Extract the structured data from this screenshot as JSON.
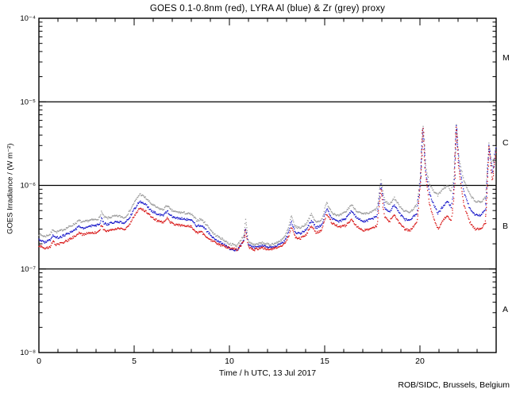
{
  "chart_data": {
    "type": "scatter",
    "title": "GOES 0.1-0.8nm (red), LYRA Al (blue) & Zr (grey) proxy",
    "xlabel": "Time / h UTC, 13 Jul 2017",
    "ylabel": "GOES Irradiance / (W m⁻²)",
    "footer": "ROB/SIDC, Brussels, Belgium",
    "x_range": [
      0,
      24
    ],
    "x_minor_step": 1,
    "x_ticks": [
      {
        "t": 0,
        "label": "0"
      },
      {
        "t": 5,
        "label": "5"
      },
      {
        "t": 10,
        "label": "10"
      },
      {
        "t": 15,
        "label": "15"
      },
      {
        "t": 20,
        "label": "20"
      }
    ],
    "y_scale": "log",
    "y_range_exp": [
      -8,
      -4
    ],
    "y_ticks": [
      {
        "exp": -4,
        "label": "10⁻⁴"
      },
      {
        "exp": -5,
        "label": "10⁻⁵"
      },
      {
        "exp": -6,
        "label": "10⁻⁶"
      },
      {
        "exp": -7,
        "label": "10⁻⁷"
      },
      {
        "exp": -8,
        "label": "10⁻⁸"
      }
    ],
    "grid": "flare-class-boundaries",
    "class_boundary_lines_exp": [
      -5,
      -6,
      -7
    ],
    "class_labels": [
      {
        "label": "M",
        "center_exp": -4.5
      },
      {
        "label": "C",
        "center_exp": -5.5
      },
      {
        "label": "B",
        "center_exp": -6.5
      },
      {
        "label": "A",
        "center_exp": -7.5
      }
    ],
    "legend_position": "in-title",
    "series": [
      {
        "name": "LYRA Zr proxy",
        "color": "#9a9a9a",
        "points": [
          [
            0.0,
            2.6e-07
          ],
          [
            0.3,
            2.45e-07
          ],
          [
            0.6,
            2.6e-07
          ],
          [
            0.75,
            3e-07
          ],
          [
            0.9,
            2.75e-07
          ],
          [
            1.2,
            2.9e-07
          ],
          [
            1.6,
            3.2e-07
          ],
          [
            1.95,
            3.55e-07
          ],
          [
            2.1,
            3.8e-07
          ],
          [
            2.3,
            3.6e-07
          ],
          [
            2.6,
            3.8e-07
          ],
          [
            3.0,
            3.9e-07
          ],
          [
            3.2,
            4.1e-07
          ],
          [
            3.28,
            4.9e-07
          ],
          [
            3.4,
            4.2e-07
          ],
          [
            3.6,
            4.05e-07
          ],
          [
            3.9,
            4.25e-07
          ],
          [
            4.2,
            4.3e-07
          ],
          [
            4.5,
            4.1e-07
          ],
          [
            4.75,
            4.85e-07
          ],
          [
            5.0,
            6.2e-07
          ],
          [
            5.3,
            7.9e-07
          ],
          [
            5.6,
            7.1e-07
          ],
          [
            5.9,
            6e-07
          ],
          [
            6.2,
            5.4e-07
          ],
          [
            6.5,
            5.1e-07
          ],
          [
            6.75,
            5.8e-07
          ],
          [
            6.9,
            5.1e-07
          ],
          [
            7.2,
            4.8e-07
          ],
          [
            7.6,
            4.7e-07
          ],
          [
            8.0,
            4.5e-07
          ],
          [
            8.3,
            3.8e-07
          ],
          [
            8.5,
            3.95e-07
          ],
          [
            8.8,
            3.4e-07
          ],
          [
            9.2,
            2.6e-07
          ],
          [
            9.6,
            2.3e-07
          ],
          [
            10.0,
            2e-07
          ],
          [
            10.4,
            1.9e-07
          ],
          [
            10.75,
            2.5e-07
          ],
          [
            10.85,
            3.9e-07
          ],
          [
            11.0,
            2.1e-07
          ],
          [
            11.3,
            1.95e-07
          ],
          [
            11.7,
            2.05e-07
          ],
          [
            12.1,
            1.95e-07
          ],
          [
            12.5,
            2.05e-07
          ],
          [
            12.9,
            2.4e-07
          ],
          [
            13.1,
            3.1e-07
          ],
          [
            13.25,
            4.3e-07
          ],
          [
            13.45,
            3.2e-07
          ],
          [
            13.7,
            3.1e-07
          ],
          [
            14.0,
            3.4e-07
          ],
          [
            14.3,
            4.5e-07
          ],
          [
            14.55,
            3.6e-07
          ],
          [
            14.85,
            3.9e-07
          ],
          [
            15.1,
            6.2e-07
          ],
          [
            15.4,
            4.7e-07
          ],
          [
            15.75,
            4.3e-07
          ],
          [
            16.1,
            4.8e-07
          ],
          [
            16.4,
            5.9e-07
          ],
          [
            16.7,
            4.9e-07
          ],
          [
            17.0,
            4.5e-07
          ],
          [
            17.4,
            4.7e-07
          ],
          [
            17.75,
            5.3e-07
          ],
          [
            17.95,
            1.18e-06
          ],
          [
            18.15,
            6.6e-07
          ],
          [
            18.4,
            5.9e-07
          ],
          [
            18.65,
            7.1e-07
          ],
          [
            18.9,
            5.8e-07
          ],
          [
            19.2,
            4.9e-07
          ],
          [
            19.5,
            4.8e-07
          ],
          [
            19.85,
            5.9e-07
          ],
          [
            20.05,
            1.5e-06
          ],
          [
            20.15,
            6e-06
          ],
          [
            20.3,
            1.7e-06
          ],
          [
            20.5,
            1.05e-06
          ],
          [
            20.7,
            8.6e-07
          ],
          [
            20.95,
            7.6e-07
          ],
          [
            21.2,
            9.2e-07
          ],
          [
            21.45,
            9.8e-07
          ],
          [
            21.65,
            8.6e-07
          ],
          [
            21.8,
            1.25e-06
          ],
          [
            21.9,
            5.8e-06
          ],
          [
            22.05,
            2.1e-06
          ],
          [
            22.3,
            1.15e-06
          ],
          [
            22.6,
            7.9e-07
          ],
          [
            22.9,
            6.4e-07
          ],
          [
            23.2,
            6.3e-07
          ],
          [
            23.45,
            7.3e-07
          ],
          [
            23.62,
            3.2e-06
          ],
          [
            23.8,
            1.6e-06
          ],
          [
            24.0,
            3.1e-06
          ]
        ]
      },
      {
        "name": "LYRA Al proxy",
        "color": "#1414c8",
        "points": [
          [
            0.0,
            2.28e-07
          ],
          [
            0.3,
            2.1e-07
          ],
          [
            0.6,
            2.22e-07
          ],
          [
            0.75,
            2.58e-07
          ],
          [
            0.9,
            2.34e-07
          ],
          [
            1.2,
            2.46e-07
          ],
          [
            1.6,
            2.7e-07
          ],
          [
            1.95,
            3e-07
          ],
          [
            2.1,
            3.24e-07
          ],
          [
            2.3,
            3.06e-07
          ],
          [
            2.6,
            3.24e-07
          ],
          [
            3.0,
            3.3e-07
          ],
          [
            3.2,
            3.48e-07
          ],
          [
            3.28,
            4.08e-07
          ],
          [
            3.4,
            3.54e-07
          ],
          [
            3.6,
            3.42e-07
          ],
          [
            3.9,
            3.6e-07
          ],
          [
            4.2,
            3.66e-07
          ],
          [
            4.5,
            3.48e-07
          ],
          [
            4.75,
            4.08e-07
          ],
          [
            5.0,
            5.16e-07
          ],
          [
            5.3,
            6.5e-07
          ],
          [
            5.6,
            5.9e-07
          ],
          [
            5.9,
            5e-07
          ],
          [
            6.2,
            4.56e-07
          ],
          [
            6.5,
            4.32e-07
          ],
          [
            6.75,
            4.92e-07
          ],
          [
            6.9,
            4.32e-07
          ],
          [
            7.2,
            4.08e-07
          ],
          [
            7.6,
            3.96e-07
          ],
          [
            8.0,
            3.84e-07
          ],
          [
            8.3,
            3.24e-07
          ],
          [
            8.5,
            3.36e-07
          ],
          [
            8.8,
            2.88e-07
          ],
          [
            9.2,
            2.3e-07
          ],
          [
            9.6,
            2.05e-07
          ],
          [
            10.0,
            1.75e-07
          ],
          [
            10.4,
            1.65e-07
          ],
          [
            10.75,
            2.2e-07
          ],
          [
            10.85,
            3.1e-07
          ],
          [
            11.0,
            1.9e-07
          ],
          [
            11.3,
            1.8e-07
          ],
          [
            11.7,
            1.9e-07
          ],
          [
            12.1,
            1.8e-07
          ],
          [
            12.5,
            1.9e-07
          ],
          [
            12.9,
            2.15e-07
          ],
          [
            13.1,
            2.7e-07
          ],
          [
            13.25,
            3.7e-07
          ],
          [
            13.45,
            2.75e-07
          ],
          [
            13.7,
            2.65e-07
          ],
          [
            14.0,
            2.9e-07
          ],
          [
            14.3,
            3.8e-07
          ],
          [
            14.55,
            3.1e-07
          ],
          [
            14.85,
            3.35e-07
          ],
          [
            15.1,
            5.3e-07
          ],
          [
            15.4,
            4e-07
          ],
          [
            15.75,
            3.7e-07
          ],
          [
            16.1,
            4e-07
          ],
          [
            16.4,
            4.9e-07
          ],
          [
            16.7,
            4.1e-07
          ],
          [
            17.0,
            3.7e-07
          ],
          [
            17.4,
            3.9e-07
          ],
          [
            17.75,
            4.3e-07
          ],
          [
            17.95,
            1.05e-06
          ],
          [
            18.15,
            5.4e-07
          ],
          [
            18.4,
            4.8e-07
          ],
          [
            18.65,
            5.8e-07
          ],
          [
            18.9,
            4.7e-07
          ],
          [
            19.2,
            3.9e-07
          ],
          [
            19.5,
            3.8e-07
          ],
          [
            19.85,
            4.7e-07
          ],
          [
            20.05,
            1.35e-06
          ],
          [
            20.15,
            5.8e-06
          ],
          [
            20.3,
            1.5e-06
          ],
          [
            20.5,
            8e-07
          ],
          [
            20.7,
            6.1e-07
          ],
          [
            20.95,
            4.6e-07
          ],
          [
            21.2,
            5.6e-07
          ],
          [
            21.45,
            6.4e-07
          ],
          [
            21.65,
            5.5e-07
          ],
          [
            21.8,
            1e-06
          ],
          [
            21.9,
            5.6e-06
          ],
          [
            22.05,
            1.8e-06
          ],
          [
            22.3,
            8.5e-07
          ],
          [
            22.6,
            5.4e-07
          ],
          [
            22.9,
            4.4e-07
          ],
          [
            23.2,
            4.4e-07
          ],
          [
            23.45,
            5.2e-07
          ],
          [
            23.62,
            3.1e-06
          ],
          [
            23.8,
            1.35e-06
          ],
          [
            24.0,
            3e-06
          ]
        ]
      },
      {
        "name": "GOES 0.1-0.8nm",
        "color": "#d81414",
        "points": [
          [
            0.0,
            1.9e-07
          ],
          [
            0.3,
            1.75e-07
          ],
          [
            0.6,
            1.85e-07
          ],
          [
            0.75,
            2.15e-07
          ],
          [
            0.9,
            1.95e-07
          ],
          [
            1.2,
            2.05e-07
          ],
          [
            1.6,
            2.25e-07
          ],
          [
            1.95,
            2.5e-07
          ],
          [
            2.1,
            2.7e-07
          ],
          [
            2.3,
            2.55e-07
          ],
          [
            2.6,
            2.7e-07
          ],
          [
            3.0,
            2.75e-07
          ],
          [
            3.2,
            2.9e-07
          ],
          [
            3.28,
            3.4e-07
          ],
          [
            3.4,
            2.95e-07
          ],
          [
            3.6,
            2.85e-07
          ],
          [
            3.9,
            3e-07
          ],
          [
            4.2,
            3.05e-07
          ],
          [
            4.5,
            2.9e-07
          ],
          [
            4.75,
            3.4e-07
          ],
          [
            5.0,
            4.3e-07
          ],
          [
            5.3,
            5.4e-07
          ],
          [
            5.6,
            4.9e-07
          ],
          [
            5.9,
            4.2e-07
          ],
          [
            6.2,
            3.8e-07
          ],
          [
            6.5,
            3.6e-07
          ],
          [
            6.75,
            4.1e-07
          ],
          [
            6.9,
            3.6e-07
          ],
          [
            7.2,
            3.4e-07
          ],
          [
            7.6,
            3.3e-07
          ],
          [
            8.0,
            3.2e-07
          ],
          [
            8.3,
            2.7e-07
          ],
          [
            8.5,
            2.8e-07
          ],
          [
            8.8,
            2.4e-07
          ],
          [
            9.2,
            2.1e-07
          ],
          [
            9.6,
            1.9e-07
          ],
          [
            10.0,
            1.8e-07
          ],
          [
            10.4,
            1.7e-07
          ],
          [
            10.75,
            2.1e-07
          ],
          [
            10.85,
            3e-07
          ],
          [
            11.0,
            1.8e-07
          ],
          [
            11.3,
            1.7e-07
          ],
          [
            11.7,
            1.8e-07
          ],
          [
            12.1,
            1.7e-07
          ],
          [
            12.5,
            1.8e-07
          ],
          [
            12.9,
            2e-07
          ],
          [
            13.1,
            2.4e-07
          ],
          [
            13.25,
            3.2e-07
          ],
          [
            13.45,
            2.4e-07
          ],
          [
            13.7,
            2.3e-07
          ],
          [
            14.0,
            2.5e-07
          ],
          [
            14.3,
            3.3e-07
          ],
          [
            14.55,
            2.7e-07
          ],
          [
            14.85,
            2.9e-07
          ],
          [
            15.1,
            4.6e-07
          ],
          [
            15.4,
            3.5e-07
          ],
          [
            15.75,
            3.2e-07
          ],
          [
            16.1,
            3.3e-07
          ],
          [
            16.4,
            3.9e-07
          ],
          [
            16.7,
            3.2e-07
          ],
          [
            17.0,
            2.9e-07
          ],
          [
            17.4,
            3e-07
          ],
          [
            17.75,
            3.3e-07
          ],
          [
            17.95,
            9e-07
          ],
          [
            18.15,
            4.2e-07
          ],
          [
            18.4,
            3.7e-07
          ],
          [
            18.65,
            4.5e-07
          ],
          [
            18.9,
            3.6e-07
          ],
          [
            19.2,
            3e-07
          ],
          [
            19.5,
            2.9e-07
          ],
          [
            19.85,
            3.6e-07
          ],
          [
            20.05,
            1.2e-06
          ],
          [
            20.15,
            5.7e-06
          ],
          [
            20.3,
            1.3e-06
          ],
          [
            20.5,
            6e-07
          ],
          [
            20.7,
            4.2e-07
          ],
          [
            20.95,
            3e-07
          ],
          [
            21.2,
            3.8e-07
          ],
          [
            21.45,
            4.4e-07
          ],
          [
            21.65,
            3.7e-07
          ],
          [
            21.8,
            8e-07
          ],
          [
            21.9,
            5.5e-06
          ],
          [
            22.05,
            1.5e-06
          ],
          [
            22.3,
            6e-07
          ],
          [
            22.6,
            3.7e-07
          ],
          [
            22.9,
            3e-07
          ],
          [
            23.2,
            3e-07
          ],
          [
            23.45,
            3.6e-07
          ],
          [
            23.62,
            3e-06
          ],
          [
            23.8,
            1.1e-06
          ],
          [
            24.0,
            2.7e-06
          ]
        ]
      }
    ]
  }
}
